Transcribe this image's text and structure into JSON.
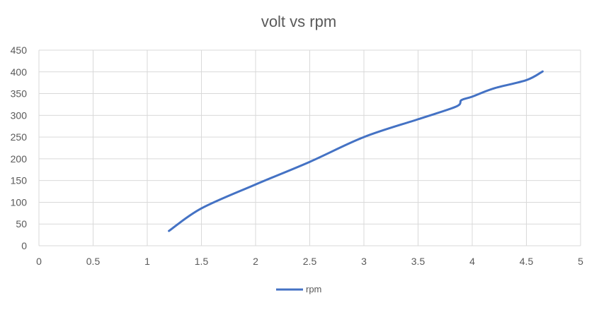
{
  "chart_data": {
    "type": "line",
    "title": "volt vs rpm",
    "xlabel": "",
    "ylabel": "",
    "xlim": [
      0,
      5
    ],
    "ylim": [
      0,
      450
    ],
    "x_ticks": [
      "0",
      "0.5",
      "1",
      "1.5",
      "2",
      "2.5",
      "3",
      "3.5",
      "4",
      "4.5",
      "5"
    ],
    "y_ticks": [
      "0",
      "50",
      "100",
      "150",
      "200",
      "250",
      "300",
      "350",
      "400",
      "450"
    ],
    "grid": true,
    "legend_position": "bottom",
    "series": [
      {
        "name": "rpm",
        "color": "#4472C4",
        "x": [
          1.2,
          1.5,
          2.0,
          2.5,
          3.0,
          3.5,
          3.85,
          3.9,
          4.0,
          4.2,
          4.5,
          4.65
        ],
        "y": [
          34,
          86,
          141,
          193,
          250,
          291,
          320,
          335,
          343,
          362,
          381,
          401
        ]
      }
    ]
  }
}
